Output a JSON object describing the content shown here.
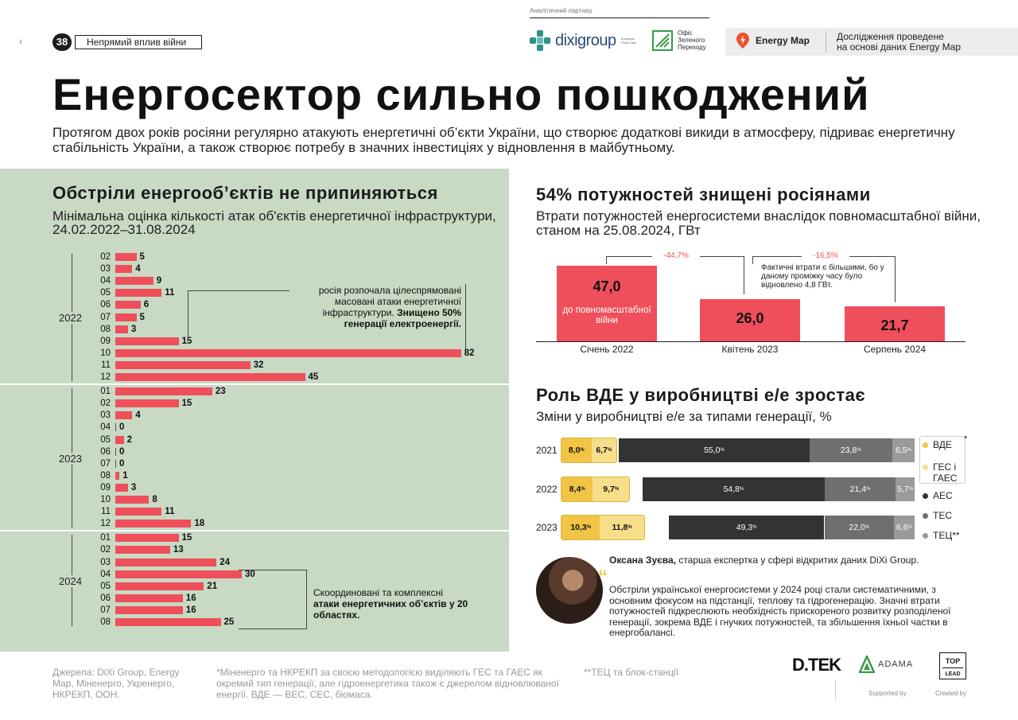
{
  "header": {
    "nav_prev": "‹",
    "page_number": "38",
    "section": "Непрямий вплив війни",
    "partner_caption": "Аналітичний партнер",
    "dixi_name": "dixigroup",
    "dixi_tagline": "Analytical Think Tank",
    "ozp_name": "Офіс Зеленого Переходу",
    "energy_map_name": "Energy Map",
    "energy_map_note_l1": "Дослідження проведене",
    "energy_map_note_l2": "на основі даних Energy Map"
  },
  "title": "Енергосектор сильно пошкоджений",
  "lead": "Протягом двох років росіяни регулярно атакують енергетичні об’єкти України, що створює додаткові викиди в атмосферу, підриває енергетичну стабільність України, а також створює потребу в значних інвестиціях у відновлення в майбутньому.",
  "attacks": {
    "title": "Обстріли енергооб’єктів не припиняються",
    "subtitle": "Мінімальна оцінка кількості атак об'єктів енергетичної інфраструктури, 24.02.2022–31.08.2024",
    "annotation1_normal": "росія розпочала цілеспрямовані масовані атаки енергетичної інфраструктури. ",
    "annotation1_bold": "Знищено 50% генерації електроенергії.",
    "annotation2_normal": "Скоординовані та комплексні ",
    "annotation2_bold": "атаки енергетичних об’єктів у 20 областях."
  },
  "capacity": {
    "title": "54% потужностей знищені росіянами",
    "subtitle": "Втрати потужностей енергосистеми внаслідок повномасштабної війни, станом на 25.08.2024, ГВт",
    "inner_label": "до повномасштабної війни",
    "delta1": "-44,7%",
    "delta2": "-16,5%",
    "note": "Фактичні втрати є більшими, бо у даному проміжку часу було відновлено 4,8 ГВт."
  },
  "generation": {
    "title": "Роль ВДЕ у виробництві е/е зростає",
    "subtitle": "Зміни у виробництві е/е за типами генерації, %",
    "legend_footnote_mark": "*"
  },
  "quote": {
    "mark": "“",
    "author": "Оксана Зуєва,",
    "role": " старша експертка у сфері відкритих даних DiXi Group.",
    "text": "Обстріли української енергосистеми у 2024 році стали систематичними, з основним фокусом на підстанції, теплову та гідрогенерацію. Значні втрати потужностей підкреслюють необхідність прискореного розвитку розподіленої генерації, зокрема ВДЕ і гнучких потужностей, та збільшення їхньої частки в енергобалансі."
  },
  "footer": {
    "sources": "Джерела: DiXi Group, Energy Map, Міненерго, Укренерго, НКРЕКП, ООН.",
    "footnote1": "*Міненерго та НКРЕКП за своєю методологією виділяють ГЕС та ГАЕС як окремий тип генерації, але гідроенергетика також є джерелом відновлюваної енергії. ВДЕ — ВЕС, СЕС, біомаса.",
    "footnote2": "**ТЕЦ та блок-станції",
    "dtek": "D.TEK",
    "adama": "ADAMA",
    "top_lead_1": "TOP",
    "top_lead_2": "LEAD",
    "supported_by": "Supported by",
    "created_by": "Created by"
  },
  "colors": {
    "red": "#ef4f5a",
    "green_bg": "#c8d9c4",
    "yellow_dark": "#f2c445",
    "yellow_light": "#f7de8a",
    "nuclear": "#333333",
    "thermal": "#6f6f6f",
    "chp": "#9a9a9a"
  },
  "chart_data": [
    {
      "type": "bar",
      "orientation": "horizontal",
      "title": "Обстріли енергооб’єктів не припиняються",
      "groups": [
        {
          "year": "2022",
          "months": [
            "02",
            "03",
            "04",
            "05",
            "06",
            "07",
            "08",
            "09",
            "10",
            "11",
            "12"
          ],
          "values": [
            5,
            4,
            9,
            11,
            6,
            5,
            3,
            15,
            82,
            32,
            45
          ]
        },
        {
          "year": "2023",
          "months": [
            "01",
            "02",
            "03",
            "04",
            "05",
            "06",
            "07",
            "08",
            "09",
            "10",
            "11",
            "12"
          ],
          "values": [
            23,
            15,
            4,
            0,
            2,
            0,
            0,
            1,
            3,
            8,
            11,
            18
          ]
        },
        {
          "year": "2024",
          "months": [
            "01",
            "02",
            "03",
            "04",
            "05",
            "06",
            "07",
            "08"
          ],
          "values": [
            15,
            13,
            24,
            30,
            21,
            16,
            16,
            25
          ]
        }
      ]
    },
    {
      "type": "bar",
      "title": "54% потужностей знищені росіянами",
      "categories": [
        "Січень 2022",
        "Квітень 2023",
        "Серпень 2024"
      ],
      "values": [
        47.0,
        26.0,
        21.7
      ],
      "labels": [
        "47,0",
        "26,0",
        "21,7"
      ],
      "ylabel": "ГВт",
      "ylim": [
        0,
        47
      ]
    },
    {
      "type": "bar",
      "stacked": true,
      "orientation": "horizontal",
      "title": "Роль ВДЕ у виробництві е/е зростає",
      "categories": [
        "2021",
        "2022",
        "2023"
      ],
      "series": [
        {
          "name": "ВДЕ",
          "color": "#f2c445",
          "values": [
            8.0,
            8.4,
            10.3
          ],
          "labels": [
            "8,0",
            "8,4",
            "10,3"
          ]
        },
        {
          "name": "ГЕС і ГАЕС",
          "color": "#f7de8a",
          "values": [
            6.7,
            9.7,
            11.8
          ],
          "labels": [
            "6,7",
            "9,7",
            "11,8"
          ]
        },
        {
          "name": "АЕС",
          "color": "#333333",
          "values": [
            55.0,
            54.8,
            49.3
          ],
          "labels": [
            "55,0",
            "54,8",
            "49,3"
          ]
        },
        {
          "name": "ТЕС",
          "color": "#6f6f6f",
          "values": [
            23.8,
            21.4,
            22.0
          ],
          "labels": [
            "23,8",
            "21,4",
            "22,0"
          ]
        },
        {
          "name": "ТЕЦ**",
          "color": "#9a9a9a",
          "values": [
            6.5,
            5.7,
            6.6
          ],
          "labels": [
            "6,5",
            "5,7",
            "6,6"
          ]
        }
      ],
      "unit_mark": "%"
    }
  ]
}
